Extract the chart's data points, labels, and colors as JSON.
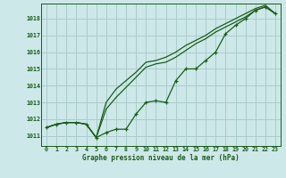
{
  "title": "Graphe pression niveau de la mer (hPa)",
  "background_color": "#cde8e8",
  "plot_bg_color": "#cde8e8",
  "grid_color": "#aacccc",
  "line_color": "#1a5c1a",
  "xlim": [
    -0.5,
    23.5
  ],
  "ylim": [
    1010.4,
    1018.9
  ],
  "xticks": [
    0,
    1,
    2,
    3,
    4,
    5,
    6,
    7,
    8,
    9,
    10,
    11,
    12,
    13,
    14,
    15,
    16,
    17,
    18,
    19,
    20,
    21,
    22,
    23
  ],
  "yticks": [
    1011,
    1012,
    1013,
    1014,
    1015,
    1016,
    1017,
    1018
  ],
  "series_marker": [
    1011.5,
    1011.7,
    1011.8,
    1011.8,
    1011.7,
    1010.9,
    1011.2,
    1011.4,
    1011.4,
    1012.3,
    1013.0,
    1013.1,
    1013.0,
    1014.3,
    1015.0,
    1015.0,
    1015.5,
    1016.0,
    1017.1,
    1017.6,
    1018.0,
    1018.5,
    1018.7,
    1018.3
  ],
  "series_smooth1": [
    1011.5,
    1011.7,
    1011.8,
    1011.8,
    1011.7,
    1010.9,
    1012.6,
    1013.3,
    1013.9,
    1014.5,
    1015.1,
    1015.3,
    1015.4,
    1015.7,
    1016.1,
    1016.5,
    1016.8,
    1017.2,
    1017.5,
    1017.8,
    1018.1,
    1018.5,
    1018.7,
    1018.3
  ],
  "series_smooth2": [
    1011.5,
    1011.7,
    1011.8,
    1011.8,
    1011.7,
    1010.9,
    1013.0,
    1013.8,
    1014.3,
    1014.8,
    1015.4,
    1015.5,
    1015.7,
    1016.0,
    1016.4,
    1016.7,
    1017.0,
    1017.4,
    1017.7,
    1018.0,
    1018.3,
    1018.6,
    1018.8,
    1018.3
  ]
}
